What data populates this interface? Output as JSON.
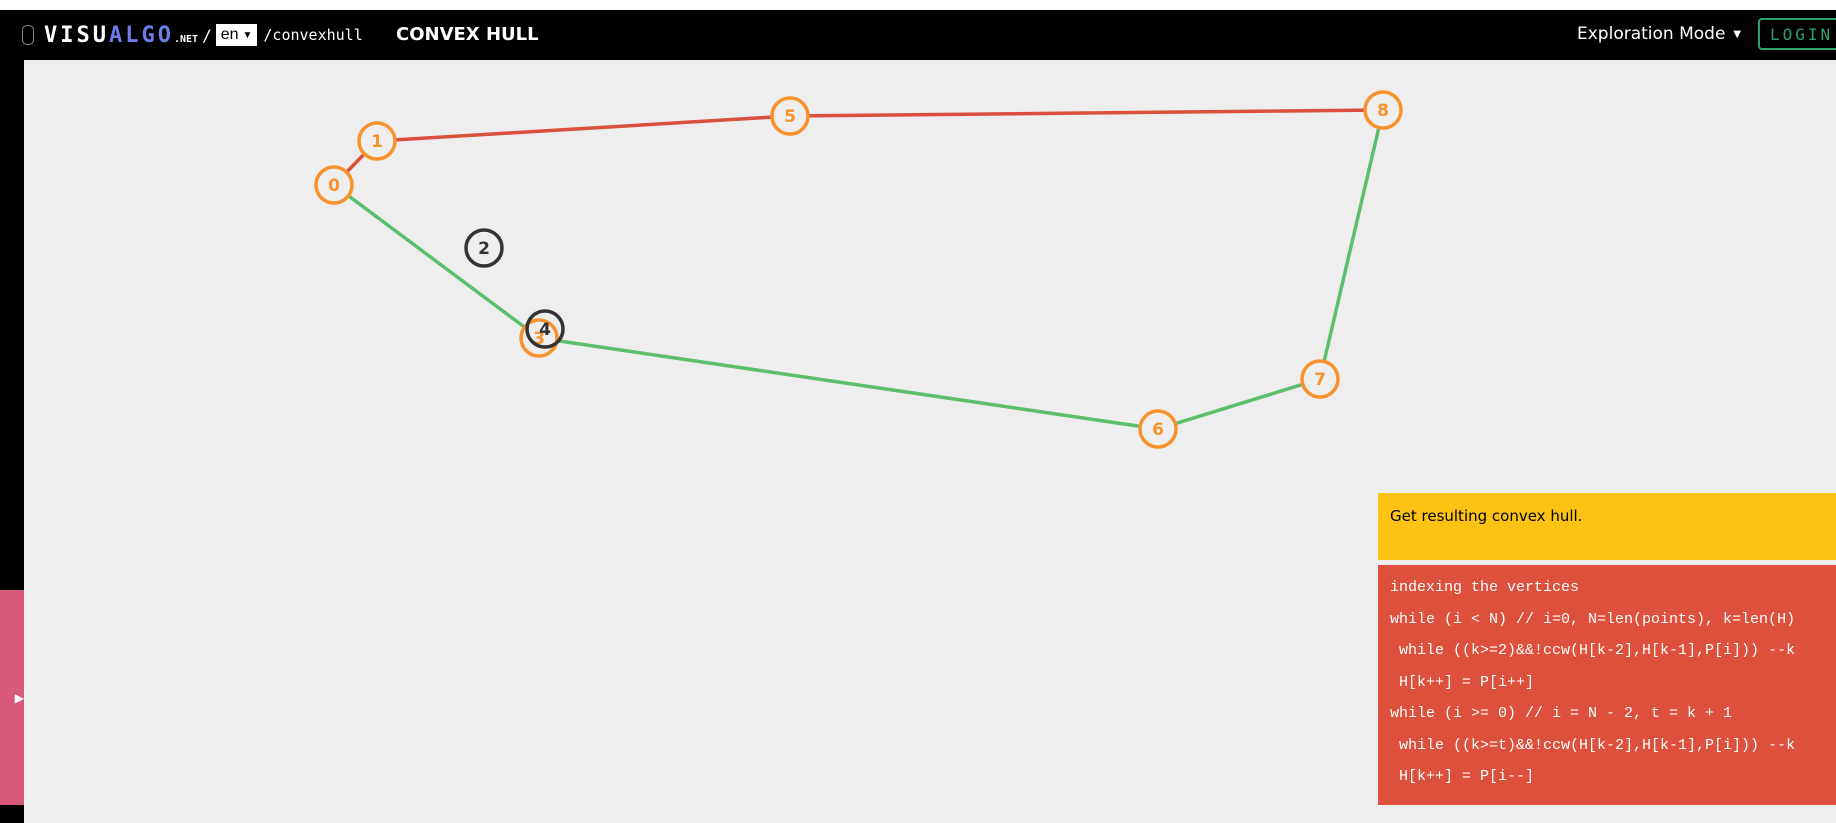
{
  "topbar": {
    "logo_part1": "VISU",
    "logo_part2": "ALGO",
    "logo_tld": ".NET",
    "separator": "/",
    "language": "en",
    "path": "/convexhull",
    "title": "CONVEX HULL",
    "mode": "Exploration Mode",
    "login": "LOGIN"
  },
  "side_tab": {
    "arrow": "▶"
  },
  "graph": {
    "vertex_color": "#f7922d",
    "dark_vertex_color": "#333333",
    "hull_upper_color": "#d9513c",
    "hull_lower_color": "#5cbf6b",
    "vertices": [
      {
        "label": "0",
        "style": "hull"
      },
      {
        "label": "1",
        "style": "hull"
      },
      {
        "label": "2",
        "style": "dark"
      },
      {
        "label": "3",
        "style": "hull"
      },
      {
        "label": "4",
        "style": "dark"
      },
      {
        "label": "5",
        "style": "hull"
      },
      {
        "label": "6",
        "style": "hull"
      },
      {
        "label": "7",
        "style": "hull"
      },
      {
        "label": "8",
        "style": "hull"
      }
    ],
    "edges_upper": [
      [
        "0",
        "1"
      ],
      [
        "1",
        "5"
      ],
      [
        "5",
        "8"
      ]
    ],
    "edges_lower": [
      [
        "0",
        "3"
      ],
      [
        "3",
        "6"
      ],
      [
        "6",
        "7"
      ],
      [
        "7",
        "8"
      ]
    ]
  },
  "status": {
    "text": "Get resulting convex hull."
  },
  "code": {
    "lines": [
      "indexing the vertices",
      "while (i < N) // i=0, N=len(points), k=len(H)",
      " while ((k>=2)&&!ccw(H[k-2],H[k-1],P[i])) --k",
      " H[k++] = P[i++]",
      "while (i >= 0) // i = N - 2, t = k + 1",
      " while ((k>=t)&&!ccw(H[k-2],H[k-1],P[i])) --k",
      " H[k++] = P[i--]"
    ]
  }
}
